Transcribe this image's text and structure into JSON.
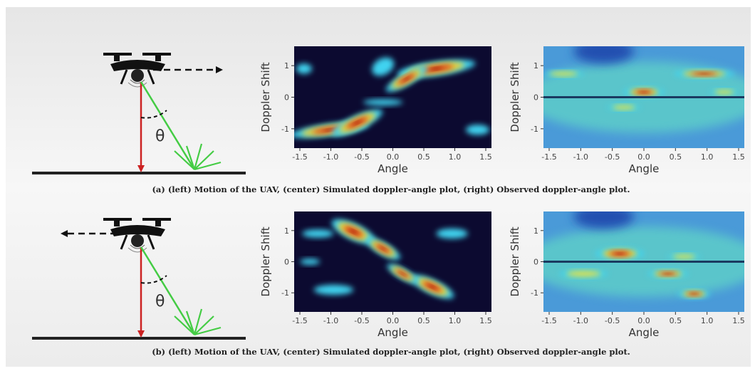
{
  "rows": [
    {
      "theta": "θ",
      "plots": [
        {
          "ylabel": "Doppler Shift",
          "xlabel": "Angle",
          "xticks": [
            "-1.5",
            "-1.0",
            "-0.5",
            "0.0",
            "0.5",
            "1.0",
            "1.5"
          ],
          "yticks": [
            "1",
            "0",
            "-1"
          ]
        },
        {
          "ylabel": "Doppler Shift",
          "xlabel": "Angle",
          "xticks": [
            "-1.5",
            "-1.0",
            "-0.5",
            "0.0",
            "0.5",
            "1.0",
            "1.5"
          ],
          "yticks": [
            "1",
            "0",
            "-1"
          ]
        }
      ],
      "caption": "(a) (left) Motion of the UAV, (center) Simulated doppler-angle plot, (right) Observed doppler-angle plot."
    },
    {
      "theta": "θ",
      "plots": [
        {
          "ylabel": "Doppler Shift",
          "xlabel": "Angle",
          "xticks": [
            "-1.5",
            "-1.0",
            "-0.5",
            "0.0",
            "0.5",
            "1.0",
            "1.5"
          ],
          "yticks": [
            "1",
            "0",
            "-1"
          ]
        },
        {
          "ylabel": "Doppler Shift",
          "xlabel": "Angle",
          "xticks": [
            "-1.5",
            "-1.0",
            "-0.5",
            "0.0",
            "0.5",
            "1.0",
            "1.5"
          ],
          "yticks": [
            "1",
            "0",
            "-1"
          ]
        }
      ],
      "caption": "(b) (left) Motion of the UAV, (center) Simulated doppler-angle plot, (right) Observed doppler-angle plot."
    }
  ]
}
